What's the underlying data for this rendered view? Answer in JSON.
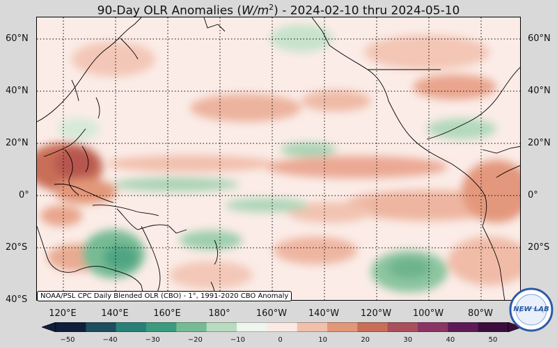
{
  "title": {
    "prefix": "90-Day OLR Anomalies (",
    "unit_base": "W/m",
    "unit_exp": "2",
    "suffix": ") - 2024-02-10 thru 2024-05-10"
  },
  "lat_labels": [
    "60°N",
    "40°N",
    "20°N",
    "0°",
    "20°S",
    "40°S"
  ],
  "lon_labels": [
    "120°E",
    "140°E",
    "160°E",
    "180°",
    "160°W",
    "140°W",
    "120°W",
    "100°W",
    "80°W"
  ],
  "credit": "NOAA/PSL CPC Daily Blended OLR (CBO) - 1°, 1991-2020 CBO Anomaly",
  "colorbar": {
    "ticks": [
      "−50",
      "−40",
      "−30",
      "−20",
      "−10",
      "0",
      "10",
      "20",
      "30",
      "40",
      "50"
    ],
    "min": -50,
    "max": 50,
    "negative_colors": [
      "#0f1e3a",
      "#1d4d5e",
      "#2a7f79",
      "#3c9a7f",
      "#77bb95",
      "#b9dcc1",
      "#eef6ee"
    ],
    "positive_colors": [
      "#fbeae4",
      "#f1c0ad",
      "#e29779",
      "#c96e58",
      "#a9505a",
      "#8a3565",
      "#5e1a57",
      "#3c0d3c"
    ]
  },
  "logo": {
    "text": "NEW LAB",
    "colors": {
      "ring": "#2b5aa8",
      "inner": "#e9f0fa"
    }
  },
  "colors": {
    "land_outline": "#000000",
    "gridline": "#000000",
    "background": "#d9d9d9"
  }
}
